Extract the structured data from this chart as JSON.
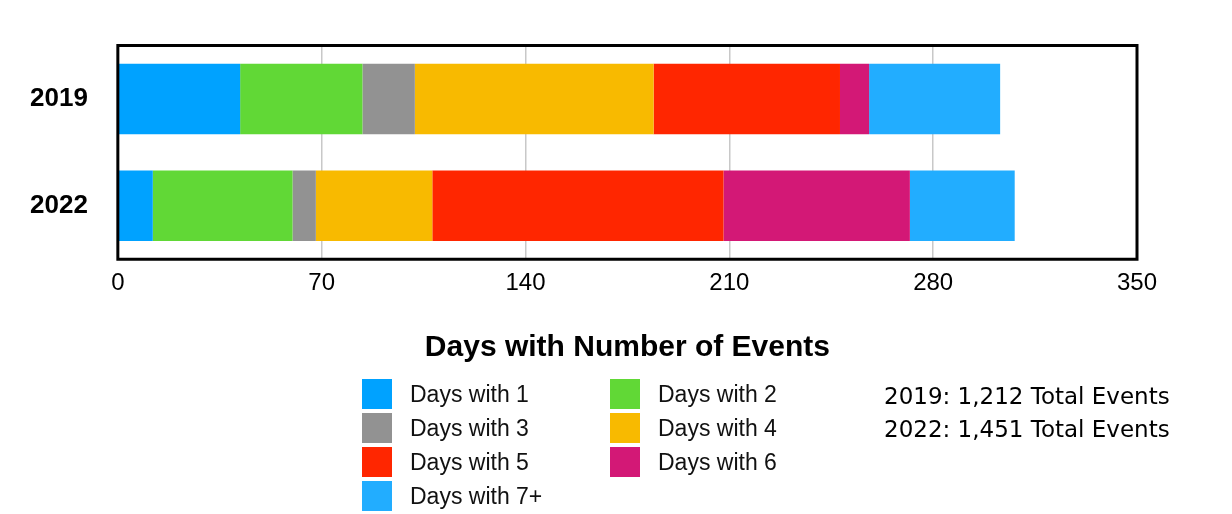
{
  "chart_data": {
    "type": "bar",
    "orientation": "horizontal",
    "stacked": true,
    "xlabel": "Days with Number of Events",
    "categories": [
      "2019",
      "2022"
    ],
    "series": [
      {
        "name": "Days with 1",
        "color": "#00a2ff",
        "values": [
          42,
          12
        ]
      },
      {
        "name": "Days with 2",
        "color": "#61d836",
        "values": [
          42,
          48
        ]
      },
      {
        "name": "Days with 3",
        "color": "#929292",
        "values": [
          18,
          8
        ]
      },
      {
        "name": "Days with 4",
        "color": "#f8ba00",
        "values": [
          82,
          40
        ]
      },
      {
        "name": "Days with 5",
        "color": "#ff2600",
        "values": [
          64,
          100
        ]
      },
      {
        "name": "Days with 6",
        "color": "#d31876",
        "values": [
          10,
          64
        ]
      },
      {
        "name": "Days with 7+",
        "color": "#22adff",
        "values": [
          45,
          36
        ]
      }
    ],
    "xlim": [
      0,
      350
    ],
    "xticks": [
      0,
      70,
      140,
      210,
      280,
      350
    ],
    "grid": "x",
    "legend": "bottom",
    "annotations": [
      "2019: 1,212 Total Events",
      "2022: 1,451 Total Events"
    ]
  }
}
